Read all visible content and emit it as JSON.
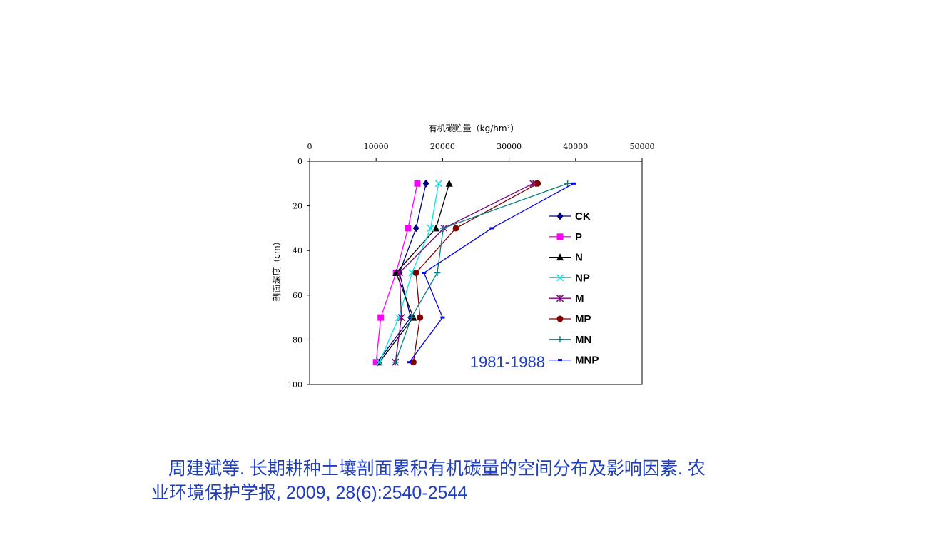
{
  "chart_data": {
    "type": "line",
    "xlabel": "有机碳贮量（kg/hm²）",
    "ylabel": "剖面深度（cm）",
    "x_ticks": [
      "0",
      "10000",
      "20000",
      "30000",
      "40000",
      "50000"
    ],
    "y_ticks": [
      "0",
      "20",
      "40",
      "60",
      "80",
      "100"
    ],
    "xlim": [
      0,
      50000
    ],
    "ylim": [
      0,
      100
    ],
    "x_axis_position": "top",
    "y_inverted": true,
    "grid": false,
    "legend_position": "right",
    "annotation": "1981-1988",
    "series": [
      {
        "name": "CK",
        "color": "#000080",
        "marker": "diamond",
        "x": [
          17500,
          16000,
          13500,
          15200,
          10200
        ],
        "y": [
          10,
          30,
          50,
          70,
          90
        ]
      },
      {
        "name": "P",
        "color": "#ff00ff",
        "marker": "square",
        "x": [
          16200,
          14800,
          13000,
          10700,
          10000
        ],
        "y": [
          10,
          30,
          50,
          70,
          90
        ]
      },
      {
        "name": "N",
        "color": "#000000",
        "marker": "triangle",
        "x": [
          21000,
          19000,
          13000,
          15600,
          10500
        ],
        "y": [
          10,
          30,
          50,
          70,
          90
        ]
      },
      {
        "name": "NP",
        "color": "#00e5e5",
        "marker": "x",
        "x": [
          19400,
          18200,
          15400,
          13400,
          10500
        ],
        "y": [
          10,
          30,
          50,
          70,
          90
        ]
      },
      {
        "name": "M",
        "color": "#800080",
        "marker": "star",
        "x": [
          33600,
          20200,
          13500,
          13800,
          12900
        ],
        "y": [
          10,
          30,
          50,
          70,
          90
        ]
      },
      {
        "name": "MP",
        "color": "#800000",
        "marker": "circle",
        "x": [
          34300,
          22000,
          16000,
          16600,
          15600
        ],
        "y": [
          10,
          30,
          50,
          70,
          90
        ]
      },
      {
        "name": "MN",
        "color": "#008080",
        "marker": "plus",
        "x": [
          38800,
          20100,
          19200,
          15300,
          12900
        ],
        "y": [
          10,
          30,
          50,
          70,
          90
        ]
      },
      {
        "name": "MNP",
        "color": "#0000ff",
        "marker": "dash",
        "x": [
          39700,
          27400,
          17200,
          20000,
          15000
        ],
        "y": [
          10,
          30,
          50,
          70,
          90
        ]
      }
    ]
  },
  "caption": {
    "line1": "周建斌等. 长期耕种土壤剖面累积有机碳量的空间分布及影响因素. 农",
    "line2": "业环境保护学报, 2009, 28(6):2540-2544"
  }
}
